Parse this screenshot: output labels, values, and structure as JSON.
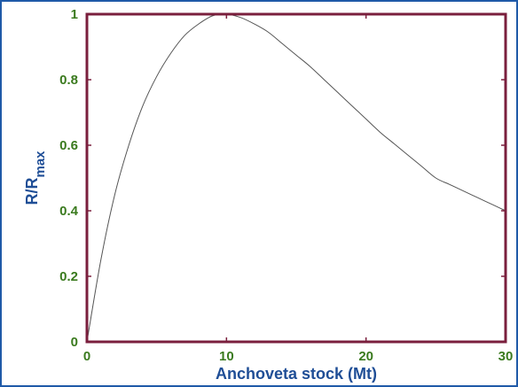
{
  "colors": {
    "frame_border": "#1f5aa8",
    "plot_box": "#7a1f3d",
    "tick_label": "#3a7a1e",
    "axis_label": "#1f4e96",
    "curve": "#555555"
  },
  "chart_data": {
    "type": "line",
    "xlabel": "Anchoveta stock (Mt)",
    "ylabel": {
      "main": "R/R",
      "subscript": "max"
    },
    "xlim": [
      0,
      30
    ],
    "ylim": [
      0,
      1
    ],
    "x_ticks": [
      {
        "value": 0,
        "label": "0"
      },
      {
        "value": 10,
        "label": "10"
      },
      {
        "value": 20,
        "label": "20"
      },
      {
        "value": 30,
        "label": "30"
      }
    ],
    "y_ticks": [
      {
        "value": 0,
        "label": "0"
      },
      {
        "value": 0.2,
        "label": "0.2"
      },
      {
        "value": 0.4,
        "label": "0.4"
      },
      {
        "value": 0.6,
        "label": "0.6"
      },
      {
        "value": 0.8,
        "label": "0.8"
      },
      {
        "value": 1,
        "label": "1"
      }
    ],
    "grid": false,
    "series": [
      {
        "x": [
          0,
          1,
          2,
          3,
          4,
          5,
          6,
          7,
          8,
          9,
          10,
          11,
          12,
          13,
          14,
          15,
          16,
          17,
          18,
          19,
          20,
          21,
          22,
          23,
          24,
          25,
          26,
          27,
          28,
          29,
          30
        ],
        "y": [
          0,
          0.25,
          0.45,
          0.6,
          0.72,
          0.81,
          0.88,
          0.935,
          0.97,
          0.995,
          1.0,
          0.99,
          0.97,
          0.945,
          0.91,
          0.875,
          0.84,
          0.8,
          0.76,
          0.72,
          0.68,
          0.64,
          0.605,
          0.57,
          0.535,
          0.5,
          0.48,
          0.46,
          0.44,
          0.42,
          0.4
        ]
      }
    ]
  }
}
